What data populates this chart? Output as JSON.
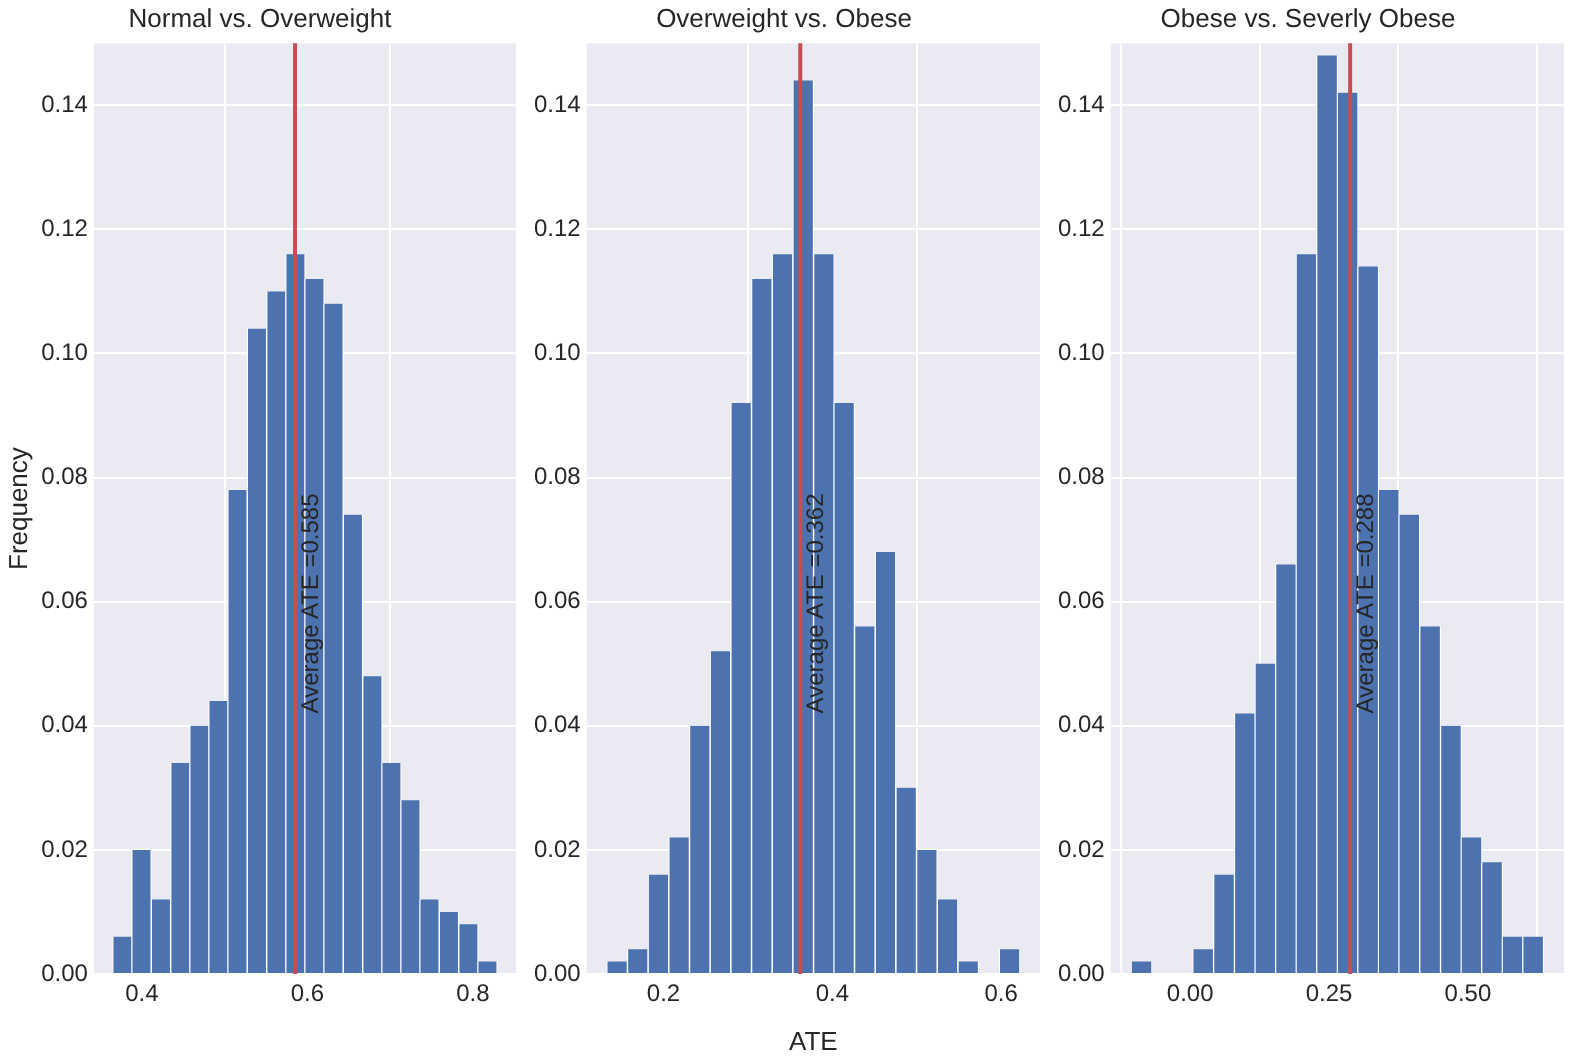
{
  "chart_data": [
    {
      "type": "histogram",
      "title": "Normal vs. Overweight",
      "ylabel": "Frequency",
      "color": "#4c72b0",
      "bins": [
        0.365,
        0.388,
        0.411,
        0.435,
        0.458,
        0.481,
        0.504,
        0.527,
        0.551,
        0.574,
        0.597,
        0.62,
        0.643,
        0.667,
        0.69,
        0.713,
        0.736,
        0.759,
        0.783,
        0.806,
        0.829
      ],
      "values": [
        0.006,
        0.02,
        0.012,
        0.034,
        0.04,
        0.044,
        0.078,
        0.104,
        0.11,
        0.116,
        0.112,
        0.108,
        0.074,
        0.048,
        0.034,
        0.028,
        0.012,
        0.01,
        0.008,
        0.002
      ],
      "xlim": [
        0.342,
        0.852
      ],
      "xticks": [
        0.4,
        0.6,
        0.8
      ],
      "ylim": [
        0,
        0.15
      ],
      "yticks": [
        {
          "value": 0,
          "label": "0.00"
        },
        {
          "value": 0.02,
          "label": "0.02"
        },
        {
          "value": 0.04,
          "label": "0.04"
        },
        {
          "value": 0.06,
          "label": "0.06"
        },
        {
          "value": 0.08,
          "label": "0.08"
        },
        {
          "value": 0.1,
          "label": "0.10"
        },
        {
          "value": 0.12,
          "label": "0.12"
        },
        {
          "value": 0.14,
          "label": "0.14"
        }
      ],
      "grid": true,
      "ref_lines": [
        {
          "axis": "x",
          "value": 0.585,
          "label": "Average ATE =0.585",
          "color": "#c44e52"
        }
      ]
    },
    {
      "type": "histogram",
      "title": "Overweight vs. Obese",
      "xlabel": "ATE",
      "color": "#4c72b0",
      "bins": [
        0.133,
        0.157,
        0.182,
        0.206,
        0.231,
        0.255,
        0.28,
        0.304,
        0.329,
        0.353,
        0.378,
        0.402,
        0.426,
        0.451,
        0.475,
        0.5,
        0.524,
        0.549,
        0.573,
        0.598,
        0.622
      ],
      "values": [
        0.002,
        0.004,
        0.016,
        0.022,
        0.04,
        0.052,
        0.092,
        0.112,
        0.116,
        0.144,
        0.116,
        0.092,
        0.056,
        0.068,
        0.03,
        0.02,
        0.012,
        0.002,
        0,
        0.004
      ],
      "xlim": [
        0.109,
        0.646
      ],
      "xticks": [
        0.2,
        0.4,
        0.6
      ],
      "ylim": [
        0,
        0.15
      ],
      "yticks": [
        {
          "value": 0,
          "label": "0.00"
        },
        {
          "value": 0.02,
          "label": "0.02"
        },
        {
          "value": 0.04,
          "label": "0.04"
        },
        {
          "value": 0.06,
          "label": "0.06"
        },
        {
          "value": 0.08,
          "label": "0.08"
        },
        {
          "value": 0.1,
          "label": "0.10"
        },
        {
          "value": 0.12,
          "label": "0.12"
        },
        {
          "value": 0.14,
          "label": "0.14"
        }
      ],
      "grid": true,
      "ref_lines": [
        {
          "axis": "x",
          "value": 0.362,
          "label": "Average ATE =0.362",
          "color": "#c44e52"
        }
      ]
    },
    {
      "type": "histogram",
      "title": "Obese vs. Severly Obese",
      "color": "#4c72b0",
      "bins": [
        -0.106,
        -0.069,
        -0.032,
        0.005,
        0.042,
        0.08,
        0.117,
        0.154,
        0.191,
        0.228,
        0.265,
        0.302,
        0.339,
        0.376,
        0.413,
        0.451,
        0.488,
        0.525,
        0.562,
        0.599,
        0.636
      ],
      "values": [
        0.002,
        0,
        0,
        0.004,
        0.016,
        0.042,
        0.05,
        0.066,
        0.116,
        0.148,
        0.142,
        0.114,
        0.078,
        0.074,
        0.056,
        0.04,
        0.022,
        0.018,
        0.006,
        0.006
      ],
      "xlim": [
        -0.143,
        0.673
      ],
      "xticks": [
        {
          "value": 0,
          "label": "0.00"
        },
        {
          "value": 0.25,
          "label": "0.25"
        },
        {
          "value": 0.5,
          "label": "0.50"
        }
      ],
      "ylim": [
        0,
        0.15
      ],
      "yticks": [
        {
          "value": 0,
          "label": "0.00"
        },
        {
          "value": 0.02,
          "label": "0.02"
        },
        {
          "value": 0.04,
          "label": "0.04"
        },
        {
          "value": 0.06,
          "label": "0.06"
        },
        {
          "value": 0.08,
          "label": "0.08"
        },
        {
          "value": 0.1,
          "label": "0.10"
        },
        {
          "value": 0.12,
          "label": "0.12"
        },
        {
          "value": 0.14,
          "label": "0.14"
        }
      ],
      "grid": true,
      "ref_lines": [
        {
          "axis": "x",
          "value": 0.288,
          "label": "Average ATE =0.288",
          "color": "#c44e52"
        }
      ]
    }
  ]
}
